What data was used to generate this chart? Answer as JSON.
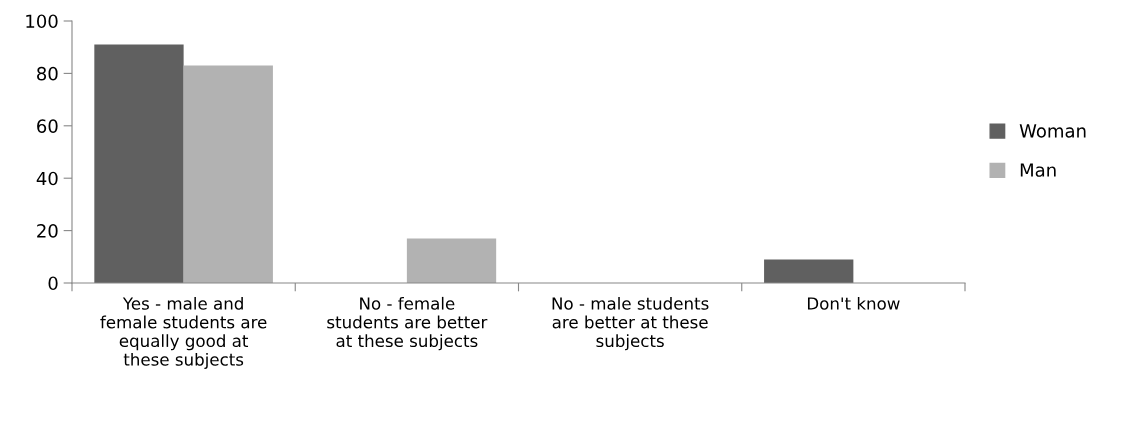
{
  "chart_data": {
    "type": "bar",
    "categories": [
      "Yes - male and female students are equally good at these subjects",
      "No - female students are better at these subjects",
      "No - male students are better at these subjects",
      "Don't know"
    ],
    "series": [
      {
        "name": "Woman",
        "color": "#606060",
        "values": [
          91,
          0,
          0,
          9
        ]
      },
      {
        "name": "Man",
        "color": "#b2b2b2",
        "values": [
          83,
          17,
          0,
          0
        ]
      }
    ],
    "ylim": [
      0,
      100
    ],
    "yticks": [
      0,
      20,
      40,
      60,
      80,
      100
    ],
    "grid": false,
    "legend": "right"
  }
}
